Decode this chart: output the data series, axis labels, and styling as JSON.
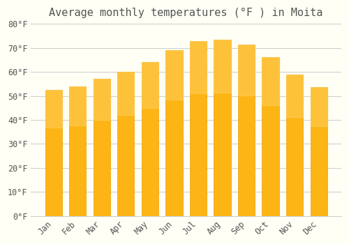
{
  "title": "Average monthly temperatures (°F ) in Moita",
  "months": [
    "Jan",
    "Feb",
    "Mar",
    "Apr",
    "May",
    "Jun",
    "Jul",
    "Aug",
    "Sep",
    "Oct",
    "Nov",
    "Dec"
  ],
  "values": [
    52.5,
    54.0,
    57.0,
    60.0,
    64.0,
    69.0,
    72.7,
    73.4,
    71.5,
    66.0,
    59.0,
    53.5
  ],
  "bar_color_top": "#FDB515",
  "bar_color_bottom": "#FFA500",
  "bar_edge_color": "#E8A000",
  "background_color": "#FFFFF5",
  "grid_color": "#cccccc",
  "text_color": "#555555",
  "ylim": [
    0,
    80
  ],
  "yticks": [
    0,
    10,
    20,
    30,
    40,
    50,
    60,
    70,
    80
  ],
  "title_fontsize": 11,
  "tick_fontsize": 8.5
}
